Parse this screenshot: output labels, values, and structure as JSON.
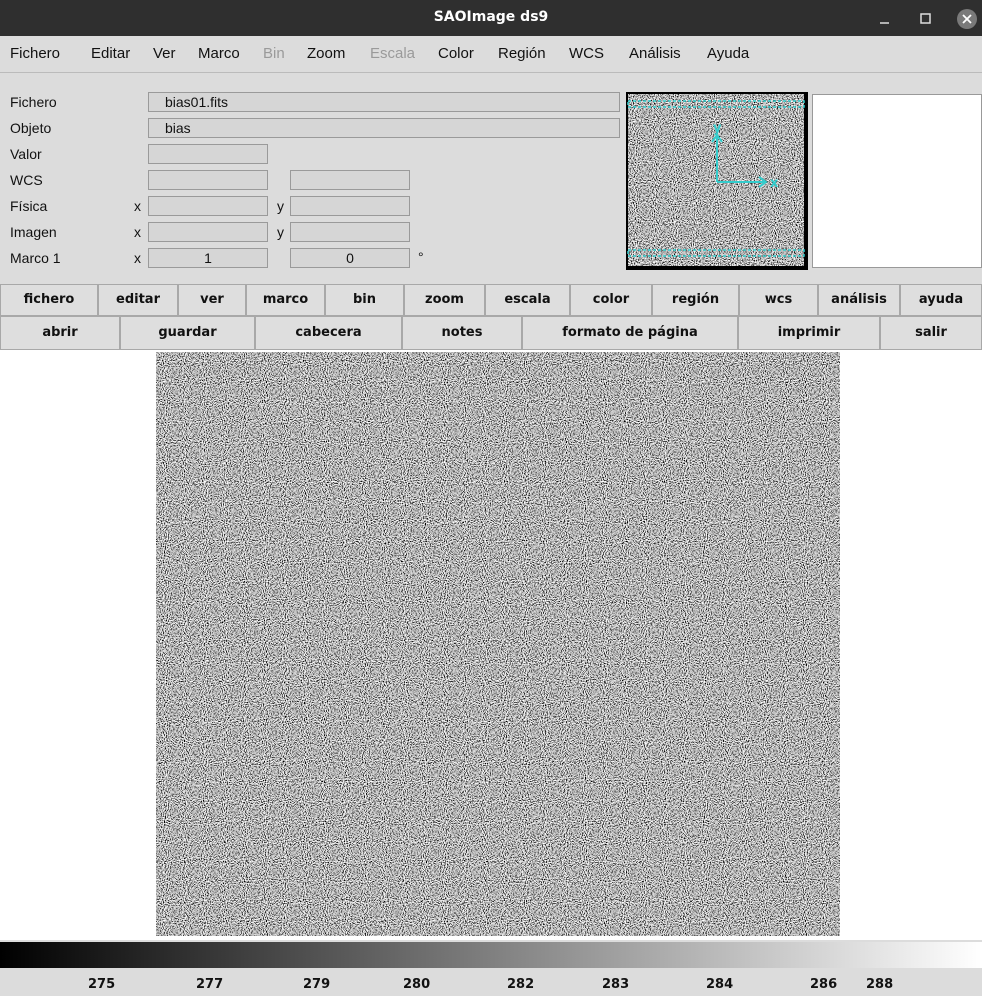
{
  "window": {
    "title": "SAOImage ds9"
  },
  "menu": [
    {
      "label": "Fichero",
      "enabled": true
    },
    {
      "label": "Editar",
      "enabled": true
    },
    {
      "label": "Ver",
      "enabled": true
    },
    {
      "label": "Marco",
      "enabled": true
    },
    {
      "label": "Bin",
      "enabled": false
    },
    {
      "label": "Zoom",
      "enabled": true
    },
    {
      "label": "Escala",
      "enabled": false
    },
    {
      "label": "Color",
      "enabled": true
    },
    {
      "label": "Región",
      "enabled": true
    },
    {
      "label": "WCS",
      "enabled": true
    },
    {
      "label": "Análisis",
      "enabled": true
    },
    {
      "label": "Ayuda",
      "enabled": true
    }
  ],
  "info": {
    "file": {
      "label": "Fichero",
      "value": "bias01.fits"
    },
    "object": {
      "label": "Objeto",
      "value": "bias"
    },
    "value": {
      "label": "Valor"
    },
    "wcs": {
      "label": "WCS"
    },
    "physical": {
      "label": "Física",
      "x": "x",
      "y": "y"
    },
    "image": {
      "label": "Imagen",
      "x": "x",
      "y": "y"
    },
    "frame": {
      "label": "Marco 1",
      "x": "x",
      "x_value": "1",
      "y_value": "0",
      "unit": "°"
    }
  },
  "panner": {
    "x_label": "x",
    "y_label": "y"
  },
  "buttons": {
    "row1": [
      "fichero",
      "editar",
      "ver",
      "marco",
      "bin",
      "zoom",
      "escala",
      "color",
      "región",
      "wcs",
      "análisis",
      "ayuda"
    ],
    "row2": [
      "abrir",
      "guardar",
      "cabecera",
      "notes",
      "formato de página",
      "imprimir",
      "salir"
    ]
  },
  "colorbar": {
    "ticks": [
      275,
      277,
      279,
      280,
      282,
      283,
      284,
      286,
      288
    ]
  }
}
